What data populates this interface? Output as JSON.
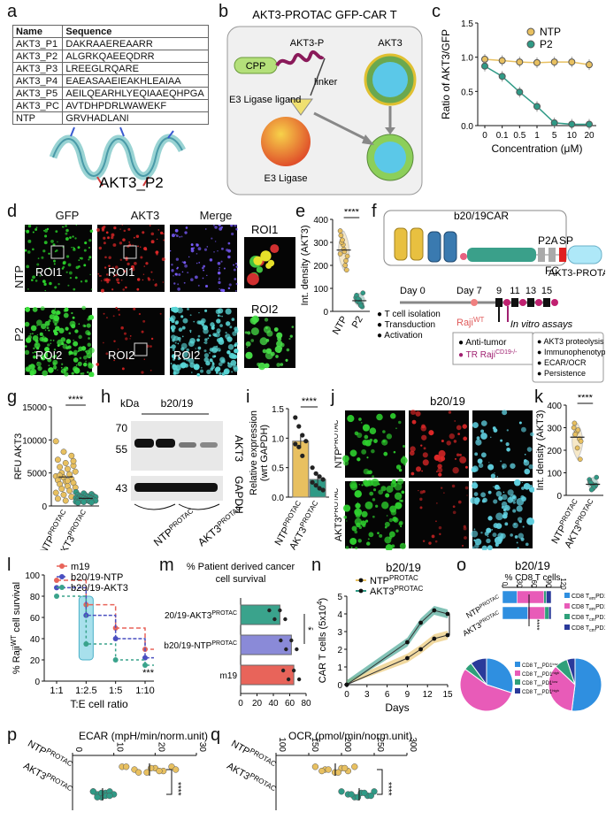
{
  "panels": {
    "a": {
      "letter": "a",
      "headers": [
        "Name",
        "Sequence"
      ],
      "rows": [
        [
          "AKT3_P1",
          "DAKRAAEREAARR"
        ],
        [
          "AKT3_P2",
          "ALGRKQAEEQDRR"
        ],
        [
          "AKT3_P3",
          "LREEGLRQARE"
        ],
        [
          "AKT3_P4",
          "EAEASAAEIEAKHLEAIAA"
        ],
        [
          "AKT3_P5",
          "AEILQEARHLYEQIAAEQHPGA"
        ],
        [
          "AKT3_PC",
          "AVTDHPDRLWAWEKF"
        ],
        [
          "NTP",
          "GRVHADLANI"
        ]
      ],
      "structure_label": "AKT3_P2"
    },
    "b": {
      "letter": "b",
      "title": "AKT3-PROTAC GFP-CAR T",
      "cpp": "CPP",
      "aktp": "AKT3-P",
      "linker": "linker",
      "e3_ligand": "E3 Ligase ligand",
      "e3": "E3 Ligase",
      "akt3": "AKT3"
    },
    "c": {
      "letter": "c",
      "ylabel": "Ratio of AKT3/GFP",
      "xlabel": "Concentration (μM)",
      "yticks": [
        "0.0",
        "0.5",
        "1.0",
        "1.5"
      ],
      "legend": [
        "NTP",
        "P2"
      ]
    },
    "d": {
      "letter": "d",
      "cols": [
        "GFP",
        "AKT3",
        "Merge"
      ],
      "rows": [
        "NTP",
        "P2"
      ],
      "roi1": "ROI1",
      "roi2": "ROI2"
    },
    "e": {
      "letter": "e",
      "ylabel": "Int. density (AKT3)",
      "yticks": [
        "0",
        "100",
        "200",
        "300",
        "400"
      ],
      "xticks": [
        "NTP",
        "P2"
      ],
      "sig": "****"
    },
    "f": {
      "letter": "f",
      "car": "b20/19CAR",
      "p2a": "P2A",
      "sp": "SP",
      "fc": "FC",
      "protac": "AKT3-PROTAC",
      "day0": "Day 0",
      "day7": "Day 7",
      "days": [
        "9",
        "11",
        "13",
        "15"
      ],
      "steps": [
        "T cell isolation",
        "Transduction",
        "Activation"
      ],
      "raji": "Raji",
      "raji_sup": "WT",
      "antitumor": "Anti-tumor",
      "tr": "TR Raji",
      "tr_sup": "CD19-/-",
      "assays_title": "In vitro assays",
      "assays": [
        "AKT3 proteolysis",
        "Immunophenotype",
        "ECAR/OCR",
        "Persistence"
      ]
    },
    "g": {
      "letter": "g",
      "ylabel": "RFU AKT3",
      "yticks": [
        "0",
        "5000",
        "10000",
        "15000"
      ],
      "xticks": [
        "NTP",
        "AKT3"
      ],
      "xsup": "PROTAC",
      "sig": "****"
    },
    "h": {
      "letter": "h",
      "kda": "kDa",
      "title": "b20/19",
      "markers": [
        "70",
        "55",
        "43"
      ],
      "bands": [
        "AKT3",
        "GAPDH"
      ],
      "xticks": [
        "NTP",
        "AKT3"
      ],
      "xsup": "PROTAC"
    },
    "i": {
      "letter": "i",
      "ylabel": "Relative expression",
      "ylabel2": "(wrt GAPDH)",
      "yticks": [
        "0.0",
        "0.5",
        "1.0",
        "1.5"
      ],
      "xticks": [
        "NTP",
        "AKT3"
      ],
      "xsup": "PROTAC",
      "sig": "****"
    },
    "j": {
      "letter": "j",
      "title": "b20/19",
      "rows": [
        "NTP",
        "AKT3"
      ],
      "rowsup": "PROTAC"
    },
    "k": {
      "letter": "k",
      "ylabel": "Int. density (AKT3)",
      "yticks": [
        "0",
        "100",
        "200",
        "300",
        "400"
      ],
      "xticks": [
        "NTP",
        "AKT3"
      ],
      "xsup": "PROTAC",
      "sig": "****"
    },
    "l": {
      "letter": "l",
      "ylabel": "% Raji",
      "ylabel_sup": "WT",
      "ylabel_rest": " cell survival",
      "xlabel": "T:E cell ratio",
      "xticks": [
        "1:1",
        "1:2.5",
        "1:5",
        "1:10"
      ],
      "yticks": [
        "0",
        "20",
        "40",
        "60",
        "80",
        "100"
      ],
      "legend": [
        "m19",
        "b20/19-NTP",
        "b20/19-AKT3"
      ],
      "legend_sup": "PROTAC",
      "sig": "***"
    },
    "m": {
      "letter": "m",
      "title": "% Patient derived cancer",
      "title2": "cell survival",
      "cats": [
        "b20/19-AKT3",
        "b20/19-NTP",
        "m19"
      ],
      "catsup": "PROTAC",
      "xticks": [
        "0",
        "20",
        "40",
        "60",
        "80"
      ],
      "sig": "**"
    },
    "n": {
      "letter": "n",
      "title": "b20/19",
      "ylabel": "CAR T cells (5x10",
      "ylabel_sup": "4",
      "ylabel_end": ")",
      "xlabel": "Days",
      "xticks": [
        "0",
        "3",
        "6",
        "9",
        "12",
        "15"
      ],
      "yticks": [
        "0",
        "1",
        "2",
        "3",
        "4",
        "5"
      ],
      "legend": [
        "NTP",
        "AKT3"
      ],
      "legend_sup": "PROTAC",
      "sig": "***"
    },
    "o": {
      "letter": "o",
      "title": "b20/19",
      "subtitle": "% CD8 T cells",
      "xticks": [
        "0",
        "30",
        "60",
        "90",
        "120"
      ],
      "rows": [
        "NTP",
        "AKT3"
      ],
      "rowsup": "PROTAC",
      "legend": [
        "CD8 T",
        "CD8 T",
        "CD8 T",
        "CD8 T"
      ],
      "legend_sub": [
        "em",
        "em",
        "cm",
        "cm"
      ],
      "legend_pd": [
        "PD1",
        "PD1",
        "PD1",
        "PD1"
      ],
      "legend_sup": [
        "low",
        "high",
        "low",
        "high"
      ],
      "sig": "****"
    },
    "p": {
      "letter": "p",
      "title": "ECAR (mpH/min/norm.unit)",
      "xticks": [
        "0",
        "10",
        "20",
        "30"
      ],
      "rows": [
        "NTP",
        "AKT3"
      ],
      "rowsup": "PROTAC",
      "sig": "****"
    },
    "q": {
      "letter": "q",
      "title": "OCR (pmol/min/norm.unit)",
      "xticks": [
        "100",
        "150",
        "200",
        "250",
        "300"
      ],
      "rows": [
        "NTP",
        "AKT3"
      ],
      "rowsup": "PROTAC",
      "sig": "****"
    }
  },
  "colors": {
    "ntp": "#e8c060",
    "p2": "#2f9a86",
    "m19": "#e8645a",
    "ntp_blue": "#4a4fc0",
    "akt_green": "#3aa38c",
    "em_low": "#2f8fe0",
    "em_high": "#e85bb8",
    "cm_low": "#2fa07a",
    "cm_high": "#2a3a9a"
  },
  "chart_data": [
    {
      "id": "c",
      "type": "line",
      "x": [
        "0",
        "0.1",
        "0.5",
        "1",
        "5",
        "10",
        "20"
      ],
      "series": [
        {
          "name": "NTP",
          "values": [
            0.97,
            0.95,
            0.93,
            0.92,
            0.93,
            0.93,
            0.89
          ]
        },
        {
          "name": "P2",
          "values": [
            0.87,
            0.72,
            0.49,
            0.28,
            0.04,
            0.02,
            0.02
          ]
        }
      ],
      "ylim": [
        0,
        1.5
      ]
    },
    {
      "id": "e",
      "type": "scatter",
      "categories": [
        "NTP",
        "P2"
      ],
      "series": [
        {
          "name": "NTP",
          "values": [
            250,
            290,
            220,
            330,
            270,
            180,
            300,
            260,
            240,
            310,
            200,
            350
          ]
        },
        {
          "name": "P2",
          "values": [
            60,
            40,
            30,
            70,
            50,
            20,
            45,
            35,
            80,
            55,
            25
          ]
        }
      ],
      "ylim": [
        0,
        400
      ]
    },
    {
      "id": "g",
      "type": "scatter",
      "categories": [
        "NTP",
        "AKT3"
      ],
      "series": [
        {
          "name": "NTP",
          "values": [
            9800,
            8200,
            7600,
            7000,
            6500,
            6100,
            5900,
            5600,
            5200,
            5000,
            4800,
            4500,
            4300,
            4100,
            3900,
            3700,
            3500,
            3300,
            3000,
            2800,
            2600,
            2300,
            2000,
            1700,
            1400,
            1100,
            800,
            6800,
            4600,
            3800
          ]
        },
        {
          "name": "AKT3",
          "values": [
            2100,
            1900,
            1800,
            1700,
            1600,
            1500,
            1450,
            1400,
            1350,
            1300,
            1250,
            1200,
            1150,
            1100,
            1050,
            1000,
            950,
            900,
            850,
            800,
            750,
            700,
            650,
            600,
            550,
            500
          ]
        }
      ],
      "ylim": [
        0,
        15000
      ]
    },
    {
      "id": "i",
      "type": "bar",
      "categories": [
        "NTP",
        "AKT3"
      ],
      "values": [
        0.95,
        0.3
      ],
      "points": [
        [
          1.35,
          1.2,
          1.05,
          0.95,
          0.9,
          0.85,
          0.7
        ],
        [
          0.5,
          0.4,
          0.35,
          0.3,
          0.25,
          0.2,
          0.15,
          0.12
        ]
      ],
      "ylim": [
        0,
        1.5
      ]
    },
    {
      "id": "k",
      "type": "scatter",
      "categories": [
        "NTP",
        "AKT3"
      ],
      "series": [
        {
          "name": "NTP",
          "values": [
            300,
            280,
            250,
            320,
            210,
            160,
            270,
            290,
            240
          ]
        },
        {
          "name": "AKT3",
          "values": [
            70,
            50,
            40,
            60,
            30,
            45,
            55,
            35,
            80,
            25
          ]
        }
      ],
      "ylim": [
        0,
        400
      ]
    },
    {
      "id": "l",
      "type": "line",
      "categories": [
        "1:1",
        "1:2.5",
        "1:5",
        "1:10"
      ],
      "series": [
        {
          "name": "m19",
          "values": [
            95,
            72,
            50,
            30
          ]
        },
        {
          "name": "b20/19-NTP",
          "values": [
            88,
            62,
            40,
            22
          ]
        },
        {
          "name": "b20/19-AKT3",
          "values": [
            80,
            35,
            20,
            15
          ]
        }
      ],
      "ylim": [
        0,
        100
      ]
    },
    {
      "id": "m",
      "type": "bar",
      "categories": [
        "b20/19-AKT3",
        "b20/19-NTP",
        "m19"
      ],
      "values": [
        48,
        62,
        65
      ],
      "xlim": [
        0,
        80
      ]
    },
    {
      "id": "n",
      "type": "line",
      "x": [
        0,
        9,
        11,
        13,
        15
      ],
      "series": [
        {
          "name": "NTP",
          "values": [
            0,
            1.5,
            2.0,
            2.6,
            2.8
          ]
        },
        {
          "name": "AKT3",
          "values": [
            0,
            2.4,
            3.5,
            4.2,
            4.0
          ]
        }
      ],
      "ylim": [
        0,
        5
      ]
    },
    {
      "id": "o",
      "type": "bar",
      "categories": [
        "NTP",
        "AKT3"
      ],
      "series": [
        {
          "name": "CD8 Tem PD1 low",
          "values": [
            30,
            52
          ]
        },
        {
          "name": "CD8 Tem PD1 high",
          "values": [
            55,
            35
          ]
        },
        {
          "name": "CD8 Tcm PD1 low",
          "values": [
            5,
            8
          ]
        },
        {
          "name": "CD8 Tcm PD1 high",
          "values": [
            10,
            5
          ]
        }
      ],
      "xlim": [
        0,
        120
      ]
    },
    {
      "id": "p",
      "type": "scatter",
      "categories": [
        "NTP",
        "AKT3"
      ],
      "series": [
        {
          "name": "NTP",
          "values": [
            12,
            15,
            18,
            20,
            22,
            24,
            25,
            16,
            19,
            21,
            13
          ]
        },
        {
          "name": "AKT3",
          "values": [
            5,
            6,
            7,
            8,
            8,
            9,
            10,
            6,
            7,
            9,
            5
          ]
        }
      ],
      "xlim": [
        0,
        30
      ]
    },
    {
      "id": "q",
      "type": "scatter",
      "categories": [
        "NTP",
        "AKT3"
      ],
      "series": [
        {
          "name": "NTP",
          "values": [
            160,
            175,
            190,
            200,
            210,
            220,
            180,
            195,
            205,
            170
          ]
        },
        {
          "name": "AKT3",
          "values": [
            200,
            210,
            220,
            230,
            240,
            250,
            215,
            225,
            235,
            245
          ]
        }
      ],
      "xlim": [
        100,
        300
      ]
    }
  ]
}
